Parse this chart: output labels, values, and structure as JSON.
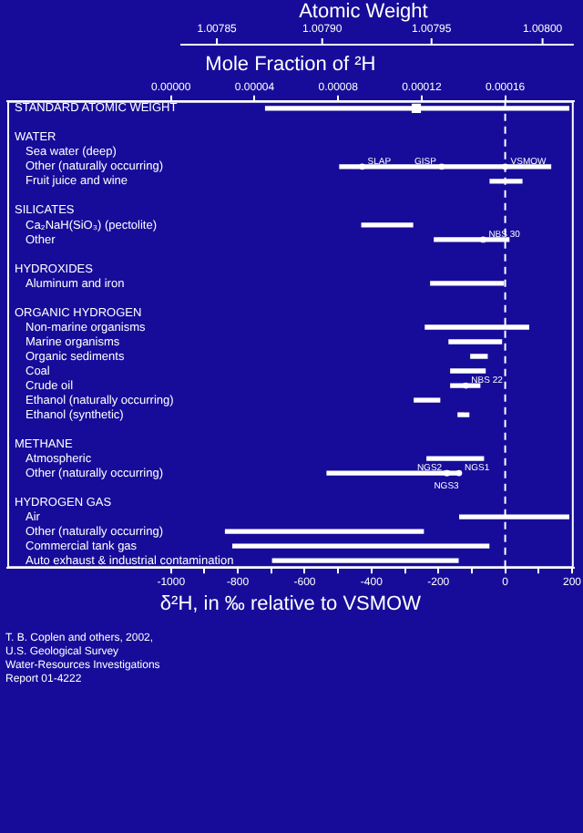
{
  "chart_data": {
    "type": "bar",
    "orientation": "horizontal",
    "xlabel": "δ²H, in ‰ relative to VSMOW",
    "x2label": "Mole Fraction of ²H",
    "categories": [
      "STANDARD ATOMIC WEIGHT",
      null,
      "WATER",
      "Sea water (deep)",
      "Other (naturally occurring)",
      "Fruit juice and wine",
      null,
      "SILICATES",
      "Ca₂NaH(SiO₃) (pectolite)",
      "Other",
      null,
      "HYDROXIDES",
      "Aluminum and iron",
      null,
      "ORGANIC HYDROGEN",
      "Non-marine organisms",
      "Marine organisms",
      "Organic sediments",
      "Coal",
      "Crude oil",
      "Ethanol (naturally occurring)",
      "Ethanol (synthetic)",
      null,
      "METHANE",
      "Atmospheric",
      "Other (naturally occurring)",
      null,
      "HYDROGEN GAS",
      "Air",
      "Other (naturally occurring)",
      "Commercial tank gas",
      "Auto exhaust & industrial contamination"
    ],
    "series": [
      {
        "color": "#ffffff",
        "values": [
          907,
          null,
          null,
          null,
          631,
          95,
          null,
          null,
          152,
          223,
          null,
          null,
          218,
          null,
          null,
          309,
          157,
          49,
          103,
          87,
          76,
          32,
          null,
          null,
          169,
          395,
          null,
          null,
          326,
          592,
          766,
          555
        ],
        "base": [
          -717,
          null,
          null,
          null,
          -495,
          -45,
          null,
          null,
          -429,
          -212,
          null,
          null,
          -223,
          null,
          null,
          -239,
          -168,
          -103,
          -163,
          -163,
          -272,
          -141,
          null,
          null,
          -234,
          -533,
          null,
          null,
          -136,
          -837,
          -815,
          -696
        ]
      },
      {
        "type": "scatter",
        "color": "#ffffff",
        "marker": "circle",
        "values": [
          null,
          null,
          null,
          null,
          -428,
          null,
          null,
          null,
          null,
          -66,
          null,
          null,
          null,
          null,
          null,
          null,
          null,
          null,
          null,
          -118,
          null,
          null,
          null,
          null,
          null,
          -138,
          null,
          null,
          null,
          null,
          null,
          null
        ],
        "value_labels": [
          null,
          null,
          null,
          null,
          "SLAP",
          null,
          null,
          null,
          null,
          "NBS 30",
          null,
          null,
          null,
          null,
          null,
          null,
          null,
          null,
          null,
          "NBS 22",
          null,
          null,
          null,
          null,
          null,
          "NGS1",
          null,
          null,
          null,
          null,
          null,
          null
        ]
      },
      {
        "type": "scatter",
        "color": "#ffffff",
        "marker": "circle",
        "values": [
          null,
          null,
          null,
          null,
          -190,
          null,
          null,
          null,
          null,
          null,
          null,
          null,
          null,
          null,
          null,
          null,
          null,
          null,
          null,
          null,
          null,
          null,
          null,
          null,
          null,
          -173,
          null,
          null,
          null,
          null,
          null,
          null
        ],
        "value_labels": [
          null,
          null,
          null,
          null,
          "GISP",
          null,
          null,
          null,
          null,
          null,
          null,
          null,
          null,
          null,
          null,
          null,
          null,
          null,
          null,
          null,
          null,
          null,
          null,
          null,
          null,
          "NGS2",
          null,
          null,
          null,
          null,
          null,
          null
        ]
      },
      {
        "type": "scatter",
        "color": "#ffffff",
        "marker": "circle",
        "values": [
          null,
          null,
          null,
          null,
          0,
          null,
          null,
          null,
          null,
          null,
          null,
          null,
          null,
          null,
          null,
          null,
          null,
          null,
          null,
          null,
          null,
          null,
          null,
          null,
          null,
          null,
          null,
          null,
          null,
          null,
          null,
          null
        ],
        "value_labels": [
          null,
          null,
          null,
          null,
          "VSMOW",
          null,
          null,
          null,
          null,
          null,
          null,
          null,
          null,
          null,
          null,
          null,
          null,
          null,
          null,
          null,
          null,
          null,
          null,
          null,
          null,
          null,
          null,
          null,
          null,
          null,
          null,
          null
        ]
      },
      {
        "type": "scatter",
        "color": "#ffffff",
        "marker": "circle",
        "values": [
          null,
          null,
          null,
          null,
          null,
          null,
          null,
          null,
          null,
          null,
          null,
          null,
          null,
          null,
          null,
          null,
          null,
          null,
          null,
          null,
          null,
          null,
          null,
          null,
          null,
          -176,
          null,
          null,
          null,
          null,
          null,
          null
        ],
        "value_labels": [
          null,
          null,
          null,
          null,
          null,
          null,
          null,
          null,
          null,
          null,
          null,
          null,
          null,
          null,
          null,
          null,
          null,
          null,
          null,
          null,
          null,
          null,
          null,
          null,
          null,
          "NGS3",
          null,
          null,
          null,
          null,
          null,
          null
        ]
      },
      {
        "type": "scatter",
        "color": "#ffffff",
        "marker": "square",
        "values": [
          -266,
          null,
          null,
          null,
          null,
          null,
          null,
          null,
          null,
          null,
          null,
          null,
          null,
          null,
          null,
          null,
          null,
          null,
          null,
          null,
          null,
          null,
          null,
          null,
          null,
          null,
          null,
          null,
          null,
          null,
          null,
          null
        ]
      }
    ],
    "xlim": [
      -1490,
      205
    ],
    "xticks": [
      -1000,
      {
        "value": -900,
        "label": null
      },
      -800,
      {
        "value": -700,
        "label": null
      },
      -600,
      {
        "value": -500,
        "label": null
      },
      -400,
      {
        "value": -300,
        "label": null
      },
      -200,
      {
        "value": -100,
        "label": null
      },
      0,
      {
        "value": 100,
        "label": null
      },
      200
    ],
    "x2lim": [
      -7.84e-05,
      0.0001928
    ],
    "x2ticks": [
      {
        "value": 0,
        "label": "0.00000"
      },
      {
        "value": 4e-05,
        "label": "0.00004"
      },
      {
        "value": 8e-05,
        "label": "0.00008"
      },
      {
        "value": 0.00012,
        "label": "0.00012"
      },
      {
        "value": 0.00016,
        "label": "0.00016"
      }
    ],
    "ref_lines": [
      {
        "axis": "x",
        "value": 0,
        "color": "#ffffff",
        "line_style": "dashed"
      }
    ],
    "annotations": [
      "Atomic Weight",
      "1.00785",
      "1.00790",
      "1.00795",
      "1.00800",
      "T. B. Coplen and others, 2002,\nU.S. Geological Survey\nWater-Resources Investigations\nReport 01-4222"
    ]
  }
}
